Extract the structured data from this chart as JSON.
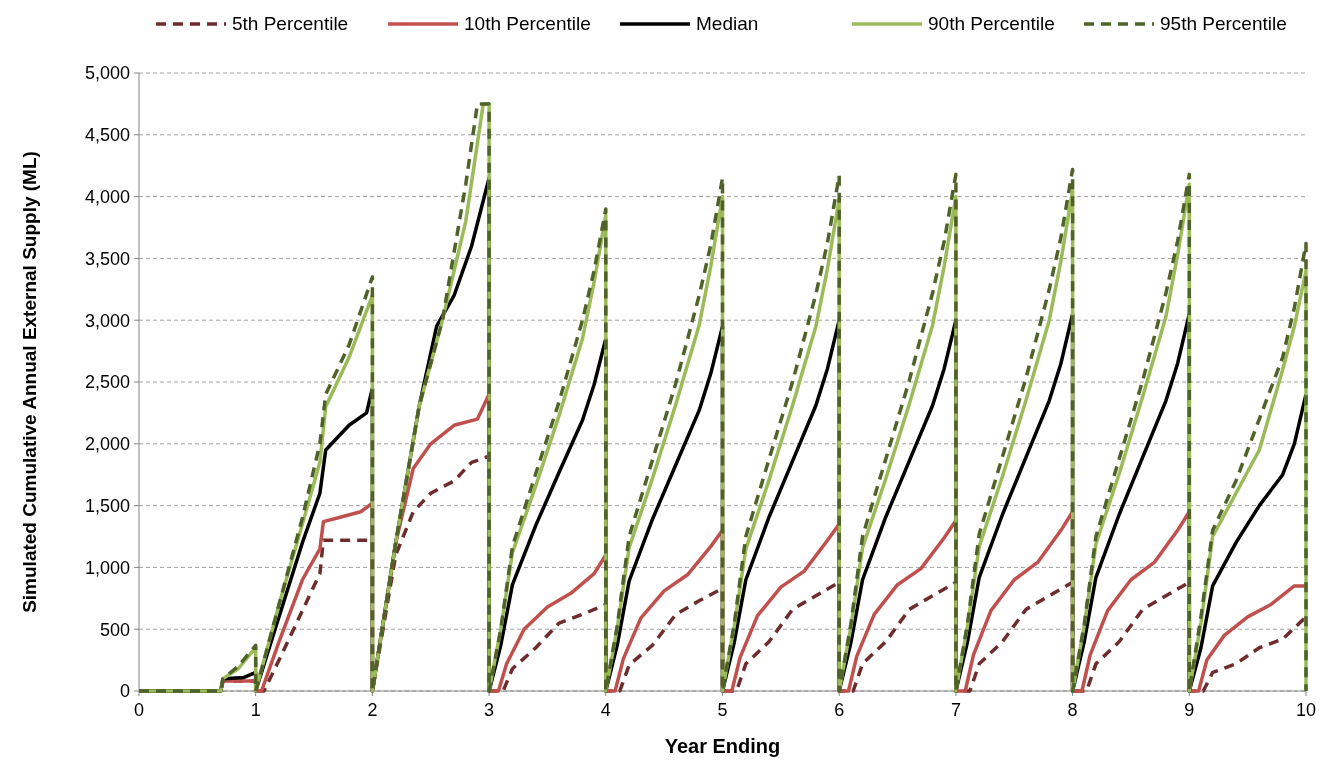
{
  "chart_data": {
    "type": "line",
    "xlabel": "Year Ending",
    "ylabel": "Simulated Cumulative Annual External Supply (ML)",
    "xlim": [
      0,
      10
    ],
    "ylim": [
      0,
      5000
    ],
    "xticks": [
      0,
      1,
      2,
      3,
      4,
      5,
      6,
      7,
      8,
      9,
      10
    ],
    "yticks": [
      0,
      500,
      {
        "value": 1000,
        "label": "1,000"
      },
      {
        "value": 1500,
        "label": "1,500"
      },
      {
        "value": 2000,
        "label": "2,000"
      },
      {
        "value": 2500,
        "label": "2,500"
      },
      {
        "value": 3000,
        "label": "3,000"
      },
      {
        "value": 3500,
        "label": "3,500"
      },
      {
        "value": 4000,
        "label": "4,000"
      },
      {
        "value": 4500,
        "label": "4,500"
      },
      {
        "value": 5000,
        "label": "5,000"
      }
    ],
    "grid": "y",
    "legend": "top",
    "series": [
      {
        "name": "5th Percentile",
        "color": "#6e2c2c",
        "line_style": "dashed",
        "x": [
          0,
          0.7,
          0.72,
          1,
          1,
          1.07,
          1.2,
          1.4,
          1.55,
          1.58,
          2,
          2,
          2.2,
          2.35,
          2.5,
          2.7,
          2.85,
          3,
          3,
          3.12,
          3.2,
          3.4,
          3.6,
          3.8,
          4,
          4,
          4.12,
          4.2,
          4.4,
          4.6,
          4.8,
          5,
          5,
          5.12,
          5.2,
          5.4,
          5.6,
          5.8,
          6,
          6,
          6.12,
          6.2,
          6.4,
          6.6,
          6.8,
          7,
          7,
          7.12,
          7.2,
          7.4,
          7.6,
          7.8,
          8,
          8,
          8.12,
          8.2,
          8.4,
          8.6,
          8.8,
          9,
          9,
          9.12,
          9.2,
          9.4,
          9.6,
          9.8,
          10
        ],
        "values": [
          0,
          0,
          80,
          80,
          0,
          0,
          250,
          650,
          950,
          1220,
          1220,
          0,
          1100,
          1450,
          1600,
          1700,
          1850,
          1900,
          0,
          0,
          180,
          350,
          550,
          620,
          700,
          0,
          0,
          210,
          370,
          620,
          730,
          830,
          0,
          0,
          220,
          400,
          660,
          770,
          880,
          0,
          0,
          220,
          400,
          660,
          770,
          880,
          0,
          0,
          220,
          400,
          660,
          770,
          880,
          0,
          0,
          220,
          400,
          660,
          770,
          880,
          0,
          0,
          150,
          220,
          350,
          420,
          600
        ]
      },
      {
        "name": "10th Percentile",
        "color": "#c0504d",
        "line_style": "solid",
        "x": [
          0,
          0.7,
          0.72,
          1,
          1,
          1.05,
          1.2,
          1.4,
          1.55,
          1.58,
          1.7,
          1.9,
          2,
          2,
          2.2,
          2.35,
          2.5,
          2.7,
          2.9,
          3,
          3,
          3.08,
          3.15,
          3.3,
          3.5,
          3.7,
          3.9,
          4,
          4,
          4.08,
          4.15,
          4.3,
          4.5,
          4.7,
          4.9,
          5,
          5,
          5.08,
          5.15,
          5.3,
          5.5,
          5.7,
          5.9,
          6,
          6,
          6.08,
          6.15,
          6.3,
          6.5,
          6.7,
          6.9,
          7,
          7,
          7.08,
          7.15,
          7.3,
          7.5,
          7.7,
          7.9,
          8,
          8,
          8.08,
          8.15,
          8.3,
          8.5,
          8.7,
          8.9,
          9,
          9,
          9.08,
          9.15,
          9.3,
          9.5,
          9.7,
          9.9,
          10
        ],
        "values": [
          0,
          0,
          80,
          80,
          0,
          0,
          400,
          900,
          1150,
          1370,
          1400,
          1450,
          1520,
          0,
          1200,
          1800,
          2000,
          2150,
          2200,
          2400,
          0,
          0,
          220,
          500,
          680,
          790,
          950,
          1100,
          0,
          0,
          260,
          590,
          810,
          940,
          1170,
          1300,
          0,
          0,
          270,
          610,
          840,
          970,
          1220,
          1350,
          0,
          0,
          280,
          620,
          860,
          990,
          1240,
          1380,
          0,
          0,
          290,
          650,
          900,
          1040,
          1300,
          1450,
          0,
          0,
          290,
          650,
          900,
          1040,
          1300,
          1450,
          0,
          0,
          250,
          450,
          600,
          700,
          850,
          850
        ]
      },
      {
        "name": "Median",
        "color": "#000000",
        "line_style": "solid",
        "x": [
          0,
          0.7,
          0.72,
          0.9,
          1,
          1,
          1.2,
          1.4,
          1.55,
          1.6,
          1.8,
          1.95,
          2,
          2,
          2.2,
          2.4,
          2.55,
          2.7,
          2.85,
          3,
          3,
          3.1,
          3.2,
          3.4,
          3.6,
          3.8,
          3.9,
          4,
          4,
          4.1,
          4.2,
          4.4,
          4.6,
          4.8,
          4.9,
          5,
          5,
          5.1,
          5.2,
          5.4,
          5.6,
          5.8,
          5.9,
          6,
          6,
          6.1,
          6.2,
          6.4,
          6.6,
          6.8,
          6.9,
          7,
          7,
          7.1,
          7.2,
          7.4,
          7.6,
          7.8,
          7.9,
          8,
          8,
          8.1,
          8.2,
          8.4,
          8.6,
          8.8,
          8.9,
          9,
          9,
          9.1,
          9.2,
          9.4,
          9.6,
          9.8,
          9.9,
          10
        ],
        "values": [
          0,
          0,
          100,
          110,
          150,
          0,
          600,
          1200,
          1600,
          1950,
          2150,
          2250,
          2450,
          0,
          1200,
          2300,
          2950,
          3200,
          3600,
          4150,
          0,
          370,
          860,
          1340,
          1770,
          2190,
          2480,
          2850,
          0,
          380,
          890,
          1390,
          1830,
          2270,
          2570,
          2950,
          0,
          390,
          900,
          1410,
          1860,
          2310,
          2610,
          3000,
          0,
          390,
          900,
          1410,
          1860,
          2310,
          2610,
          3000,
          0,
          400,
          920,
          1430,
          1890,
          2350,
          2650,
          3050,
          0,
          400,
          920,
          1430,
          1890,
          2350,
          2650,
          3050,
          0,
          350,
          850,
          1200,
          1500,
          1750,
          2000,
          2400
        ]
      },
      {
        "name": "90th Percentile",
        "color": "#9bbb59",
        "line_style": "solid",
        "x": [
          0,
          0.7,
          0.72,
          0.85,
          1,
          1,
          1.2,
          1.4,
          1.55,
          1.6,
          1.8,
          2,
          2,
          2.2,
          2.4,
          2.6,
          2.8,
          2.95,
          3,
          3,
          3.1,
          3.2,
          3.4,
          3.6,
          3.8,
          3.9,
          4,
          4,
          4.1,
          4.2,
          4.4,
          4.6,
          4.8,
          4.9,
          5,
          5,
          5.1,
          5.2,
          5.4,
          5.6,
          5.8,
          5.9,
          6,
          6,
          6.1,
          6.2,
          6.4,
          6.6,
          6.8,
          6.9,
          7,
          7,
          7.1,
          7.2,
          7.4,
          7.6,
          7.8,
          7.9,
          8,
          8,
          8.1,
          8.2,
          8.4,
          8.6,
          8.8,
          8.9,
          9,
          9,
          9.1,
          9.2,
          9.4,
          9.6,
          9.8,
          9.9,
          10,
          10
        ],
        "values": [
          0,
          0,
          100,
          180,
          350,
          0,
          700,
          1350,
          1850,
          2300,
          2700,
          3200,
          0,
          1200,
          2300,
          3000,
          3800,
          4750,
          4750,
          0,
          500,
          1120,
          1660,
          2230,
          2850,
          3310,
          3850,
          0,
          520,
          1160,
          1720,
          2320,
          2960,
          3440,
          4000,
          0,
          520,
          1150,
          1710,
          2310,
          2950,
          3420,
          3980,
          0,
          520,
          1160,
          1720,
          2320,
          2960,
          3440,
          4000,
          0,
          530,
          1170,
          1740,
          2350,
          3000,
          3480,
          4050,
          0,
          530,
          1190,
          1760,
          2380,
          3030,
          3530,
          4100,
          0,
          550,
          1250,
          1600,
          1950,
          2600,
          2950,
          3400,
          0
        ]
      },
      {
        "name": "95th Percentile",
        "color": "#4f6228",
        "line_style": "dashed",
        "x": [
          0,
          0.7,
          0.72,
          0.85,
          1,
          1,
          1.2,
          1.4,
          1.55,
          1.6,
          1.8,
          2,
          2,
          2.2,
          2.4,
          2.6,
          2.8,
          2.9,
          3,
          3,
          3.1,
          3.2,
          3.4,
          3.6,
          3.8,
          3.9,
          4,
          4,
          4.1,
          4.2,
          4.4,
          4.6,
          4.8,
          4.9,
          5,
          5,
          5.1,
          5.2,
          5.4,
          5.6,
          5.8,
          5.9,
          6,
          6,
          6.1,
          6.2,
          6.4,
          6.6,
          6.8,
          6.9,
          7,
          7,
          7.1,
          7.2,
          7.4,
          7.6,
          7.8,
          7.9,
          8,
          8,
          8.1,
          8.2,
          8.4,
          8.6,
          8.8,
          8.9,
          9,
          9,
          9.1,
          9.2,
          9.4,
          9.6,
          9.8,
          9.9,
          10,
          10
        ],
        "values": [
          0,
          0,
          100,
          200,
          370,
          0,
          700,
          1400,
          2000,
          2400,
          2800,
          3350,
          0,
          1200,
          2300,
          3000,
          4100,
          4750,
          4750,
          0,
          500,
          1170,
          1760,
          2340,
          3000,
          3400,
          3900,
          0,
          540,
          1250,
          1870,
          2490,
          3200,
          3610,
          4150,
          0,
          540,
          1250,
          1880,
          2500,
          3210,
          3630,
          4170,
          0,
          540,
          1250,
          1880,
          2510,
          3220,
          3640,
          4180,
          0,
          550,
          1270,
          1900,
          2530,
          3250,
          3670,
          4220,
          0,
          540,
          1250,
          1880,
          2510,
          3220,
          3640,
          4180,
          0,
          600,
          1300,
          1700,
          2200,
          2700,
          3100,
          3620,
          0
        ]
      }
    ]
  }
}
